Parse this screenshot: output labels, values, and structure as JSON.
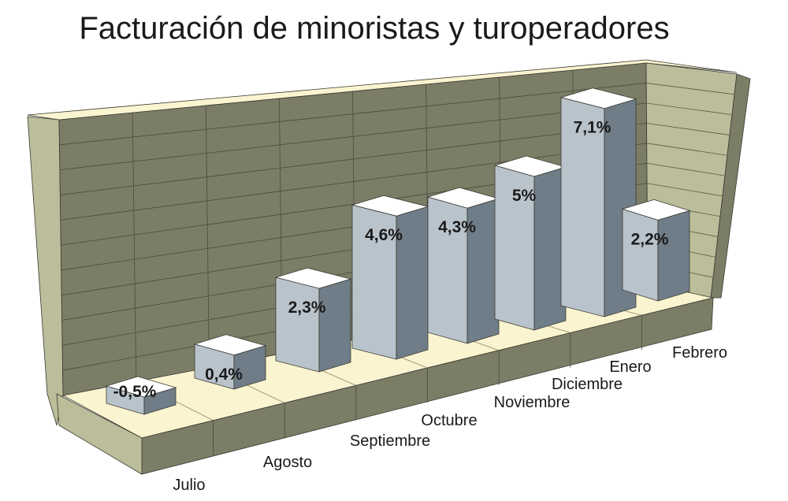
{
  "chart_data": {
    "type": "bar",
    "title": "Facturación de minoristas y turoperadores",
    "categories": [
      "Julio",
      "Agosto",
      "Septiembre",
      "Octubre",
      "Noviembre",
      "Diciembre",
      "Enero",
      "Febrero"
    ],
    "values": [
      -0.5,
      0.4,
      2.3,
      4.6,
      4.3,
      5.0,
      7.1,
      2.2
    ],
    "labels": [
      "-0,5%",
      "0,4%",
      "2,3%",
      "4,6%",
      "4,3%",
      "5%",
      "7,1%",
      "2,2%"
    ],
    "xlabel": "",
    "ylabel": "",
    "unit": "%",
    "grid": true,
    "style": "3d",
    "colors": {
      "wall": "#7b7d67",
      "wall_side": "#bbbd9b",
      "floor": "#fbf4d0",
      "bar_front": "#b9c3cc",
      "bar_side": "#6f7d88",
      "bar_top": "#ffffff"
    }
  }
}
